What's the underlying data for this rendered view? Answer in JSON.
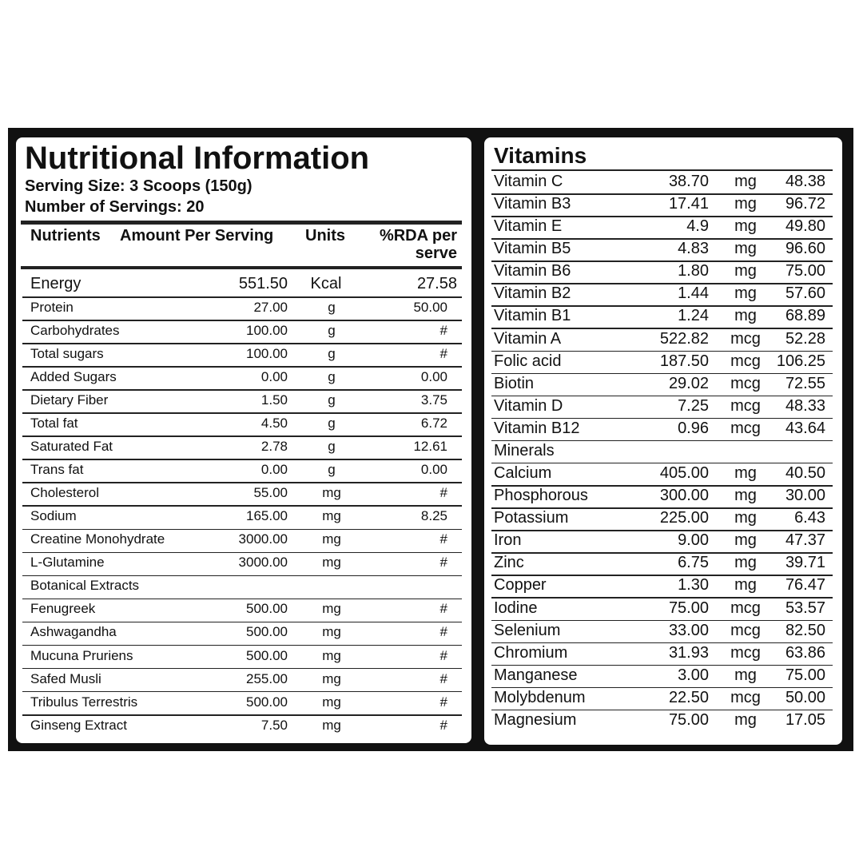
{
  "nutrition": {
    "title": "Nutritional Information",
    "serving_size": "Serving Size:  3 Scoops (150g)",
    "servings": "Number of Servings: 20",
    "header": [
      "Nutrients",
      "Amount Per Serving",
      "Units",
      "%RDA per",
      "serve"
    ],
    "rows": [
      [
        "Energy",
        "551.50",
        "Kcal",
        "27.58"
      ],
      [
        "Protein",
        "27.00",
        "g",
        "50.00"
      ],
      [
        "Carbohydrates",
        "100.00",
        "g",
        "#"
      ],
      [
        "Total sugars",
        "100.00",
        "g",
        "#"
      ],
      [
        "Added Sugars",
        "0.00",
        "g",
        "0.00"
      ],
      [
        "Dietary Fiber",
        "1.50",
        "g",
        "3.75"
      ],
      [
        "Total fat",
        "4.50",
        "g",
        "6.72"
      ],
      [
        "Saturated Fat",
        "2.78",
        "g",
        "12.61"
      ],
      [
        "Trans fat",
        "0.00",
        "g",
        "0.00"
      ],
      [
        "Cholesterol",
        "55.00",
        "mg",
        "#"
      ],
      [
        "Sodium",
        "165.00",
        "mg",
        "8.25"
      ],
      [
        "Creatine Monohydrate",
        "3000.00",
        "mg",
        "#"
      ],
      [
        "L-Glutamine",
        "3000.00",
        "mg",
        "#"
      ],
      [
        "Botanical Extracts"
      ],
      [
        "Fenugreek",
        "500.00",
        "mg",
        "#"
      ],
      [
        "Ashwagandha",
        "500.00",
        "mg",
        "#"
      ],
      [
        "Mucuna Pruriens",
        "500.00",
        "mg",
        "#"
      ],
      [
        "Safed Musli",
        "255.00",
        "mg",
        "#"
      ],
      [
        "Tribulus Terrestris",
        "500.00",
        "mg",
        "#"
      ],
      [
        "Ginseng Extract",
        "7.50",
        "mg",
        "#"
      ]
    ]
  },
  "vitamins": {
    "title": "Vitamins",
    "rows": [
      [
        "Vitamin C",
        "38.70",
        "mg",
        "48.38"
      ],
      [
        "Vitamin B3",
        "17.41",
        "mg",
        "96.72"
      ],
      [
        "Vitamin E",
        "4.9",
        "mg",
        "49.80"
      ],
      [
        "Vitamin B5",
        "4.83",
        "mg",
        "96.60"
      ],
      [
        "Vitamin B6",
        "1.80",
        "mg",
        "75.00"
      ],
      [
        "Vitamin B2",
        "1.44",
        "mg",
        "57.60"
      ],
      [
        "Vitamin B1",
        "1.24",
        "mg",
        "68.89"
      ],
      [
        "Vitamin A",
        "522.82",
        "mcg",
        "52.28"
      ],
      [
        "Folic acid",
        "187.50",
        "mcg",
        "106.25"
      ],
      [
        "Biotin",
        "29.02",
        "mcg",
        "72.55"
      ],
      [
        "Vitamin D",
        "7.25",
        "mcg",
        "48.33"
      ],
      [
        "Vitamin B12",
        "0.96",
        "mcg",
        "43.64"
      ],
      [
        "Minerals"
      ],
      [
        "Calcium",
        "405.00",
        "mg",
        "40.50"
      ],
      [
        "Phosphorous",
        "300.00",
        "mg",
        "30.00"
      ],
      [
        "Potassium",
        "225.00",
        "mg",
        "6.43"
      ],
      [
        "Iron",
        "9.00",
        "mg",
        "47.37"
      ],
      [
        "Zinc",
        "6.75",
        "mg",
        "39.71"
      ],
      [
        "Copper",
        "1.30",
        "mg",
        "76.47"
      ],
      [
        "Iodine",
        "75.00",
        "mcg",
        "53.57"
      ],
      [
        "Selenium",
        "33.00",
        "mcg",
        "82.50"
      ],
      [
        "Chromium",
        "31.93",
        "mcg",
        "63.86"
      ],
      [
        "Manganese",
        "3.00",
        "mg",
        "75.00"
      ],
      [
        "Molybdenum",
        "22.50",
        "mcg",
        "50.00"
      ],
      [
        "Magnesium",
        "75.00",
        "mg",
        "17.05"
      ]
    ]
  }
}
